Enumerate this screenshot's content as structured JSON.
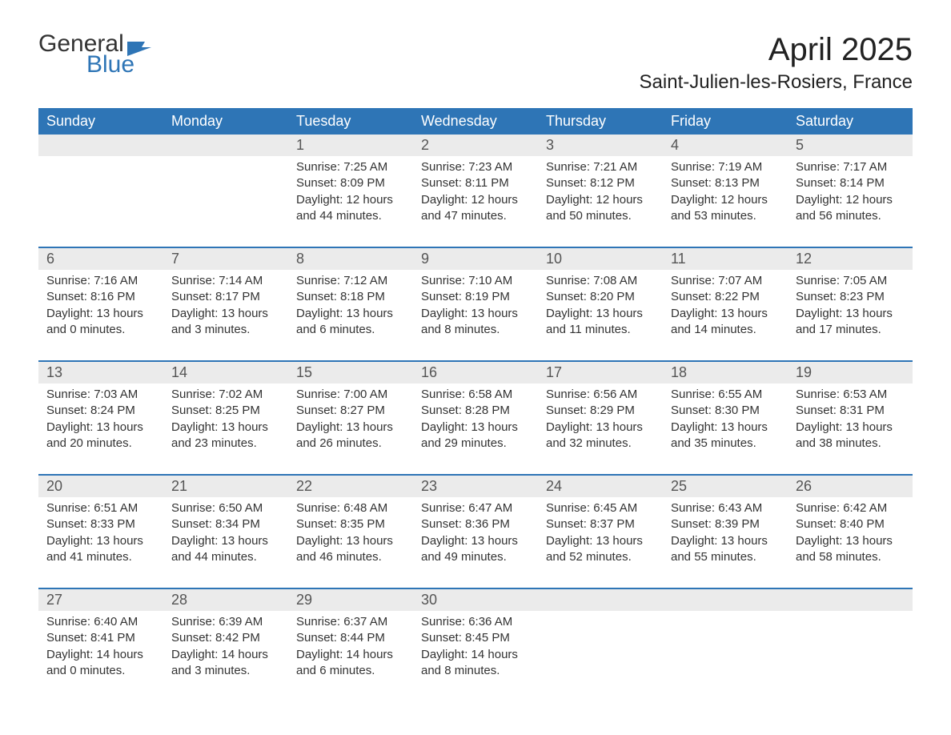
{
  "logo": {
    "word1": "General",
    "word2": "Blue",
    "color_dark": "#333333",
    "color_blue": "#2e75b6"
  },
  "title": "April 2025",
  "location": "Saint-Julien-les-Rosiers, France",
  "colors": {
    "header_bg": "#2e75b6",
    "header_text": "#ffffff",
    "daynum_bg": "#ebebeb",
    "daynum_text": "#555555",
    "body_text": "#333333",
    "rule": "#2e75b6",
    "page_bg": "#ffffff"
  },
  "typography": {
    "title_fontsize": 40,
    "location_fontsize": 24,
    "dow_fontsize": 18,
    "daynum_fontsize": 18,
    "detail_fontsize": 15,
    "font_family": "Arial"
  },
  "days_of_week": [
    "Sunday",
    "Monday",
    "Tuesday",
    "Wednesday",
    "Thursday",
    "Friday",
    "Saturday"
  ],
  "weeks": [
    [
      null,
      null,
      {
        "n": "1",
        "sunrise": "Sunrise: 7:25 AM",
        "sunset": "Sunset: 8:09 PM",
        "day1": "Daylight: 12 hours",
        "day2": "and 44 minutes."
      },
      {
        "n": "2",
        "sunrise": "Sunrise: 7:23 AM",
        "sunset": "Sunset: 8:11 PM",
        "day1": "Daylight: 12 hours",
        "day2": "and 47 minutes."
      },
      {
        "n": "3",
        "sunrise": "Sunrise: 7:21 AM",
        "sunset": "Sunset: 8:12 PM",
        "day1": "Daylight: 12 hours",
        "day2": "and 50 minutes."
      },
      {
        "n": "4",
        "sunrise": "Sunrise: 7:19 AM",
        "sunset": "Sunset: 8:13 PM",
        "day1": "Daylight: 12 hours",
        "day2": "and 53 minutes."
      },
      {
        "n": "5",
        "sunrise": "Sunrise: 7:17 AM",
        "sunset": "Sunset: 8:14 PM",
        "day1": "Daylight: 12 hours",
        "day2": "and 56 minutes."
      }
    ],
    [
      {
        "n": "6",
        "sunrise": "Sunrise: 7:16 AM",
        "sunset": "Sunset: 8:16 PM",
        "day1": "Daylight: 13 hours",
        "day2": "and 0 minutes."
      },
      {
        "n": "7",
        "sunrise": "Sunrise: 7:14 AM",
        "sunset": "Sunset: 8:17 PM",
        "day1": "Daylight: 13 hours",
        "day2": "and 3 minutes."
      },
      {
        "n": "8",
        "sunrise": "Sunrise: 7:12 AM",
        "sunset": "Sunset: 8:18 PM",
        "day1": "Daylight: 13 hours",
        "day2": "and 6 minutes."
      },
      {
        "n": "9",
        "sunrise": "Sunrise: 7:10 AM",
        "sunset": "Sunset: 8:19 PM",
        "day1": "Daylight: 13 hours",
        "day2": "and 8 minutes."
      },
      {
        "n": "10",
        "sunrise": "Sunrise: 7:08 AM",
        "sunset": "Sunset: 8:20 PM",
        "day1": "Daylight: 13 hours",
        "day2": "and 11 minutes."
      },
      {
        "n": "11",
        "sunrise": "Sunrise: 7:07 AM",
        "sunset": "Sunset: 8:22 PM",
        "day1": "Daylight: 13 hours",
        "day2": "and 14 minutes."
      },
      {
        "n": "12",
        "sunrise": "Sunrise: 7:05 AM",
        "sunset": "Sunset: 8:23 PM",
        "day1": "Daylight: 13 hours",
        "day2": "and 17 minutes."
      }
    ],
    [
      {
        "n": "13",
        "sunrise": "Sunrise: 7:03 AM",
        "sunset": "Sunset: 8:24 PM",
        "day1": "Daylight: 13 hours",
        "day2": "and 20 minutes."
      },
      {
        "n": "14",
        "sunrise": "Sunrise: 7:02 AM",
        "sunset": "Sunset: 8:25 PM",
        "day1": "Daylight: 13 hours",
        "day2": "and 23 minutes."
      },
      {
        "n": "15",
        "sunrise": "Sunrise: 7:00 AM",
        "sunset": "Sunset: 8:27 PM",
        "day1": "Daylight: 13 hours",
        "day2": "and 26 minutes."
      },
      {
        "n": "16",
        "sunrise": "Sunrise: 6:58 AM",
        "sunset": "Sunset: 8:28 PM",
        "day1": "Daylight: 13 hours",
        "day2": "and 29 minutes."
      },
      {
        "n": "17",
        "sunrise": "Sunrise: 6:56 AM",
        "sunset": "Sunset: 8:29 PM",
        "day1": "Daylight: 13 hours",
        "day2": "and 32 minutes."
      },
      {
        "n": "18",
        "sunrise": "Sunrise: 6:55 AM",
        "sunset": "Sunset: 8:30 PM",
        "day1": "Daylight: 13 hours",
        "day2": "and 35 minutes."
      },
      {
        "n": "19",
        "sunrise": "Sunrise: 6:53 AM",
        "sunset": "Sunset: 8:31 PM",
        "day1": "Daylight: 13 hours",
        "day2": "and 38 minutes."
      }
    ],
    [
      {
        "n": "20",
        "sunrise": "Sunrise: 6:51 AM",
        "sunset": "Sunset: 8:33 PM",
        "day1": "Daylight: 13 hours",
        "day2": "and 41 minutes."
      },
      {
        "n": "21",
        "sunrise": "Sunrise: 6:50 AM",
        "sunset": "Sunset: 8:34 PM",
        "day1": "Daylight: 13 hours",
        "day2": "and 44 minutes."
      },
      {
        "n": "22",
        "sunrise": "Sunrise: 6:48 AM",
        "sunset": "Sunset: 8:35 PM",
        "day1": "Daylight: 13 hours",
        "day2": "and 46 minutes."
      },
      {
        "n": "23",
        "sunrise": "Sunrise: 6:47 AM",
        "sunset": "Sunset: 8:36 PM",
        "day1": "Daylight: 13 hours",
        "day2": "and 49 minutes."
      },
      {
        "n": "24",
        "sunrise": "Sunrise: 6:45 AM",
        "sunset": "Sunset: 8:37 PM",
        "day1": "Daylight: 13 hours",
        "day2": "and 52 minutes."
      },
      {
        "n": "25",
        "sunrise": "Sunrise: 6:43 AM",
        "sunset": "Sunset: 8:39 PM",
        "day1": "Daylight: 13 hours",
        "day2": "and 55 minutes."
      },
      {
        "n": "26",
        "sunrise": "Sunrise: 6:42 AM",
        "sunset": "Sunset: 8:40 PM",
        "day1": "Daylight: 13 hours",
        "day2": "and 58 minutes."
      }
    ],
    [
      {
        "n": "27",
        "sunrise": "Sunrise: 6:40 AM",
        "sunset": "Sunset: 8:41 PM",
        "day1": "Daylight: 14 hours",
        "day2": "and 0 minutes."
      },
      {
        "n": "28",
        "sunrise": "Sunrise: 6:39 AM",
        "sunset": "Sunset: 8:42 PM",
        "day1": "Daylight: 14 hours",
        "day2": "and 3 minutes."
      },
      {
        "n": "29",
        "sunrise": "Sunrise: 6:37 AM",
        "sunset": "Sunset: 8:44 PM",
        "day1": "Daylight: 14 hours",
        "day2": "and 6 minutes."
      },
      {
        "n": "30",
        "sunrise": "Sunrise: 6:36 AM",
        "sunset": "Sunset: 8:45 PM",
        "day1": "Daylight: 14 hours",
        "day2": "and 8 minutes."
      },
      null,
      null,
      null
    ]
  ]
}
